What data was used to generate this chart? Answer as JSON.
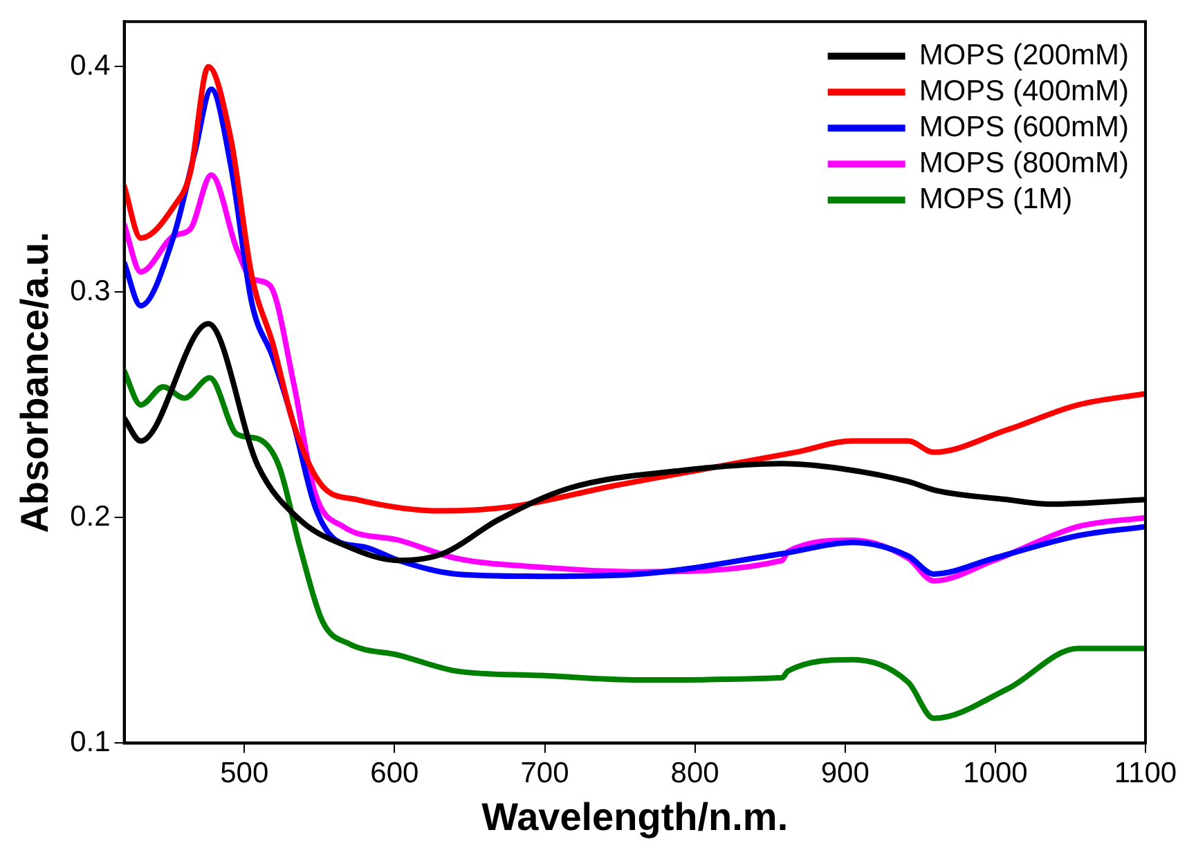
{
  "chart_data": {
    "type": "line",
    "xlabel": "Wavelength/n.m.",
    "ylabel": "Absorbance/a.u.",
    "xlim": [
      420,
      1100
    ],
    "ylim": [
      0.1,
      0.42
    ],
    "xticks": [
      500,
      600,
      700,
      800,
      900,
      1000,
      1100
    ],
    "yticks": [
      0.1,
      0.2,
      0.3,
      0.4
    ],
    "grid": false,
    "legend": "top right",
    "marker": "none",
    "line_style": "solid",
    "series": [
      {
        "name": "MOPS (200mM)",
        "color": "#000000",
        "x": [
          420,
          431,
          476,
          509,
          537,
          566,
          603,
          632,
          669,
          716,
          792,
          858,
          895,
          942,
          961,
          1008,
          1036,
          1100
        ],
        "values": [
          0.244,
          0.234,
          0.286,
          0.223,
          0.199,
          0.188,
          0.181,
          0.184,
          0.199,
          0.213,
          0.221,
          0.224,
          0.222,
          0.216,
          0.212,
          0.208,
          0.206,
          0.208
        ]
      },
      {
        "name": "MOPS (400mM)",
        "color": "#ff0000",
        "x": [
          420,
          431,
          453,
          464,
          476,
          491,
          505,
          519,
          533,
          552,
          575,
          632,
          679,
          745,
          810,
          867,
          905,
          942,
          959,
          1008,
          1055,
          1100
        ],
        "values": [
          0.347,
          0.324,
          0.338,
          0.353,
          0.4,
          0.368,
          0.307,
          0.277,
          0.241,
          0.214,
          0.208,
          0.203,
          0.205,
          0.214,
          0.222,
          0.229,
          0.234,
          0.234,
          0.229,
          0.239,
          0.25,
          0.255
        ]
      },
      {
        "name": "MOPS (600mM)",
        "color": "#0000ff",
        "x": [
          420,
          431,
          453,
          467,
          478,
          491,
          505,
          519,
          533,
          547,
          561,
          580,
          603,
          641,
          698,
          763,
          858,
          905,
          942,
          959,
          999,
          1055,
          1100
        ],
        "values": [
          0.313,
          0.294,
          0.325,
          0.362,
          0.39,
          0.356,
          0.295,
          0.271,
          0.241,
          0.205,
          0.19,
          0.187,
          0.181,
          0.175,
          0.174,
          0.175,
          0.184,
          0.189,
          0.183,
          0.175,
          0.182,
          0.192,
          0.196
        ]
      },
      {
        "name": "MOPS (800mM)",
        "color": "#ff00ff",
        "x": [
          420,
          431,
          453,
          464,
          478,
          495,
          505,
          517,
          533,
          547,
          566,
          603,
          641,
          698,
          763,
          858,
          862,
          905,
          942,
          959,
          999,
          1055,
          1100
        ],
        "values": [
          0.33,
          0.309,
          0.325,
          0.328,
          0.352,
          0.319,
          0.306,
          0.303,
          0.259,
          0.211,
          0.196,
          0.19,
          0.182,
          0.178,
          0.176,
          0.181,
          0.185,
          0.19,
          0.182,
          0.172,
          0.181,
          0.196,
          0.2
        ]
      },
      {
        "name": "MOPS (1M)",
        "color": "#008000",
        "x": [
          420,
          431,
          446,
          460,
          477,
          495,
          509,
          523,
          537,
          552,
          570,
          603,
          641,
          698,
          763,
          858,
          862,
          905,
          942,
          959,
          1008,
          1055,
          1100
        ],
        "values": [
          0.265,
          0.25,
          0.258,
          0.253,
          0.262,
          0.237,
          0.235,
          0.223,
          0.187,
          0.154,
          0.144,
          0.139,
          0.132,
          0.13,
          0.128,
          0.129,
          0.132,
          0.137,
          0.127,
          0.111,
          0.124,
          0.142,
          0.142
        ]
      }
    ]
  }
}
